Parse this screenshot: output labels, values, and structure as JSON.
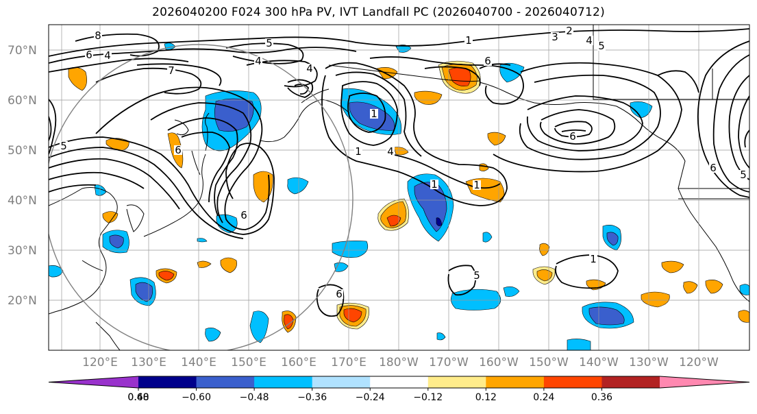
{
  "title": "2026040200 F024 300 hPa PV, IVT Landfall PC (2026040700 - 2026040712)",
  "latitude_labels": [
    "70°N",
    "60°N",
    "50°N",
    "40°N",
    "30°N",
    "20°N"
  ],
  "longitude_labels": [
    "120°E",
    "130°E",
    "140°E",
    "150°E",
    "160°E",
    "170°E",
    "180°W",
    "170°W",
    "160°W",
    "150°W",
    "140°W",
    "130°W",
    "120°W"
  ],
  "colorbar": {
    "tick_labels": [
      "−0.60",
      "−0.48",
      "−0.36",
      "−0.24",
      "−0.12",
      "0.12",
      "0.24",
      "0.36",
      "0.48",
      "0.60"
    ],
    "colors": [
      "#9932cc",
      "#00008b",
      "#3a5fcd",
      "#00bfff",
      "#b0e2ff",
      "#ffffff",
      "#ffec8b",
      "#ffa500",
      "#ff4500",
      "#b22222",
      "#ff88b0"
    ]
  },
  "contour_labels": [
    {
      "text": "8"
    },
    {
      "text": "6"
    },
    {
      "text": "4"
    },
    {
      "text": "7"
    },
    {
      "text": "5"
    },
    {
      "text": "4"
    },
    {
      "text": "4"
    },
    {
      "text": "1"
    },
    {
      "text": "2"
    },
    {
      "text": "3"
    },
    {
      "text": "4"
    },
    {
      "text": "5"
    },
    {
      "text": "6"
    },
    {
      "text": "6"
    },
    {
      "text": "5"
    },
    {
      "text": "1"
    },
    {
      "text": "1"
    },
    {
      "text": "4"
    },
    {
      "text": "6"
    },
    {
      "text": "6"
    },
    {
      "text": "1"
    },
    {
      "text": "1"
    },
    {
      "text": "1"
    },
    {
      "text": "5"
    },
    {
      "text": "6"
    },
    {
      "text": "6"
    },
    {
      "text": "5"
    }
  ]
}
